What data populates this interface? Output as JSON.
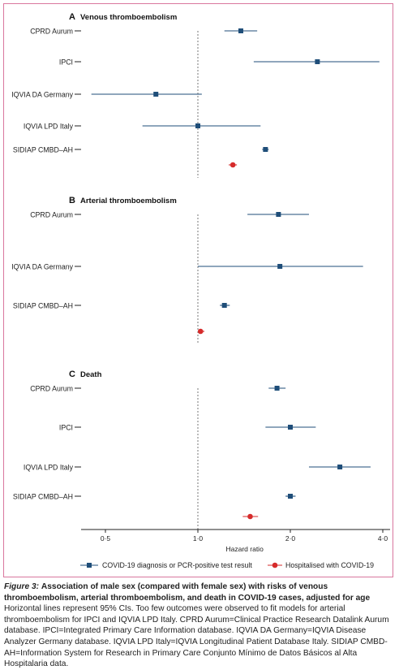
{
  "chart_data": {
    "type": "forest",
    "xlabel": "Hazard ratio",
    "xscale": "log",
    "xlim": [
      0.4,
      4.2
    ],
    "reference_line": 1.0,
    "xticks": [
      {
        "value": 0.5,
        "label": "0·5"
      },
      {
        "value": 1.0,
        "label": "1·0"
      },
      {
        "value": 2.0,
        "label": "2·0"
      },
      {
        "value": 4.0,
        "label": "4·0"
      }
    ],
    "legend": {
      "placement": "bottom",
      "entries": [
        {
          "key": "covid",
          "label": "COVID-19 diagnosis or PCR-positive test result",
          "color": "#1f4e79",
          "marker": "square"
        },
        {
          "key": "hosp",
          "label": "Hospitalised with COVID-19",
          "color": "#d62b2b",
          "marker": "circle"
        }
      ]
    },
    "panels": [
      {
        "letter": "A",
        "title": "Venous thromboembolism",
        "rows": [
          {
            "label": "CPRD Aurum",
            "covid": {
              "hr": 1.38,
              "lo": 1.22,
              "hi": 1.56
            }
          },
          {
            "label": "IPCI",
            "covid": {
              "hr": 2.45,
              "lo": 1.52,
              "hi": 3.9
            }
          },
          {
            "label": "IQVIA DA Germany",
            "covid": {
              "hr": 0.73,
              "lo": 0.45,
              "hi": 1.03
            }
          },
          {
            "label": "IQVIA LPD Italy",
            "covid": {
              "hr": 1.0,
              "lo": 0.66,
              "hi": 1.6
            }
          },
          {
            "label": "SIDIAP CMBD–AH",
            "covid": {
              "hr": 1.66,
              "lo": 1.62,
              "hi": 1.7
            },
            "hosp": {
              "hr": 1.3,
              "lo": 1.26,
              "hi": 1.34
            }
          }
        ]
      },
      {
        "letter": "B",
        "title": "Arterial thromboembolism",
        "rows": [
          {
            "label": "CPRD Aurum",
            "covid": {
              "hr": 1.83,
              "lo": 1.45,
              "hi": 2.3
            }
          },
          {
            "label": "IQVIA DA Germany",
            "covid": {
              "hr": 1.85,
              "lo": 1.0,
              "hi": 3.45
            }
          },
          {
            "label": "SIDIAP CMBD–AH",
            "covid": {
              "hr": 1.22,
              "lo": 1.18,
              "hi": 1.27
            },
            "hosp": {
              "hr": 1.02,
              "lo": 1.0,
              "hi": 1.05
            }
          }
        ]
      },
      {
        "letter": "C",
        "title": "Death",
        "rows": [
          {
            "label": "CPRD Aurum",
            "covid": {
              "hr": 1.81,
              "lo": 1.7,
              "hi": 1.93
            }
          },
          {
            "label": "IPCI",
            "covid": {
              "hr": 2.0,
              "lo": 1.66,
              "hi": 2.42
            }
          },
          {
            "label": "IQVIA LPD Italy",
            "covid": {
              "hr": 2.9,
              "lo": 2.3,
              "hi": 3.65
            }
          },
          {
            "label": "SIDIAP CMBD–AH",
            "covid": {
              "hr": 2.0,
              "lo": 1.93,
              "hi": 2.08
            },
            "hosp": {
              "hr": 1.48,
              "lo": 1.4,
              "hi": 1.57
            }
          }
        ]
      }
    ]
  },
  "caption": {
    "figure_label": "Figure 3:",
    "title": "Association of male sex (compared with female sex) with risks of venous thromboembolism, arterial thromboembolism, and death in COVID-19 cases, adjusted for age",
    "body": "Horizontal lines represent 95% CIs. Too few outcomes were observed to fit models for arterial thromboembolism for IPCI and IQVIA LPD Italy. CPRD Aurum=Clinical Practice Research Datalink Aurum database. IPCI=Integrated Primary Care Information database. IQVIA DA Germany=IQVIA Disease Analyzer Germany database. IQVIA LPD Italy=IQVIA Longitudinal Patient Database Italy. SIDIAP CMBD-AH=Information System for Research in Primary Care Conjunto Mínimo de Datos Básicos al Alta Hospitalaria data."
  }
}
